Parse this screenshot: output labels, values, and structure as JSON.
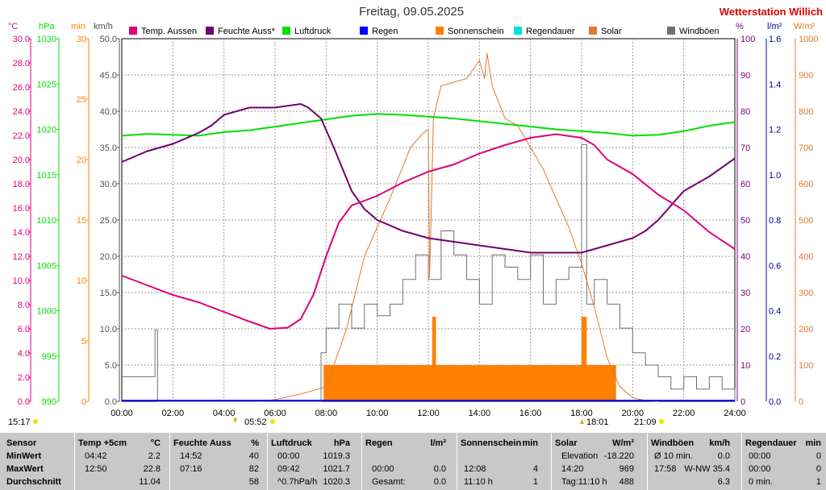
{
  "title": "Freitag, 09.05.2025",
  "station": "Wetterstation Willich",
  "colors": {
    "temp": "#e0007a",
    "humidity": "#700070",
    "pressure": "#00e000",
    "rain": "#0000ff",
    "sunshine": "#ff8000",
    "rainduration": "#00e0e0",
    "solar": "#e07830",
    "gust": "#707070",
    "grid": "#999999"
  },
  "legend": [
    {
      "label": "Temp. Aussen",
      "color": "#e0007a"
    },
    {
      "label": "Feuchte Auss*",
      "color": "#700070"
    },
    {
      "label": "Luftdruck",
      "color": "#00e000"
    },
    {
      "label": "Regen",
      "color": "#0000ff"
    },
    {
      "label": "Sonnenschein",
      "color": "#ff8000"
    },
    {
      "label": "Regendauer",
      "color": "#00e0e0"
    },
    {
      "label": "Solar",
      "color": "#e07830"
    },
    {
      "label": "Windböen",
      "color": "#707070"
    }
  ],
  "axes": {
    "temp": {
      "unit": "°C",
      "min": 0,
      "max": 30,
      "ticks": [
        "30.0",
        "28.0",
        "26.0",
        "24.0",
        "22.0",
        "20.0",
        "18.0",
        "16.0",
        "14.0",
        "12.0",
        "10.0",
        "8.0",
        "6.0",
        "4.0",
        "2.0",
        "0.0"
      ]
    },
    "pressure": {
      "unit": "hPa",
      "min": 990,
      "max": 1030,
      "ticks": [
        "1030",
        "1025",
        "1020",
        "1015",
        "1010",
        "1005",
        "1000",
        "995",
        "990"
      ]
    },
    "minutes": {
      "unit": "min",
      "min": 0,
      "max": 30,
      "ticks": [
        "30",
        "25",
        "20",
        "15",
        "10",
        "5",
        "0"
      ]
    },
    "wind": {
      "unit": "km/h",
      "min": 0,
      "max": 50,
      "ticks": [
        "50.0",
        "45.0",
        "40.0",
        "35.0",
        "30.0",
        "25.0",
        "20.0",
        "15.0",
        "10.0",
        "5.0",
        "0.0"
      ]
    },
    "humidity": {
      "unit": "%",
      "min": 0,
      "max": 100,
      "ticks": [
        "100",
        "90",
        "80",
        "70",
        "60",
        "50",
        "40",
        "30",
        "20",
        "10",
        "0"
      ]
    },
    "rain": {
      "unit": "l/m²",
      "min": 0,
      "max": 1.6,
      "ticks": [
        "1.6",
        "1.4",
        "1.2",
        "1.0",
        "0.8",
        "0.6",
        "0.4",
        "0.2",
        "0.0"
      ]
    },
    "solar": {
      "unit": "W/m²",
      "min": 0,
      "max": 1000,
      "ticks": [
        "1000",
        "900",
        "800",
        "700",
        "600",
        "500",
        "400",
        "300",
        "200",
        "100",
        "0"
      ]
    },
    "x": {
      "ticks": [
        "00:00",
        "02:00",
        "04:00",
        "06:00",
        "08:00",
        "10:00",
        "12:00",
        "14:00",
        "16:00",
        "18:00",
        "20:00",
        "22:00",
        "24:00"
      ]
    }
  },
  "markers": {
    "moonrise": "15:17",
    "sunrise": "05:52",
    "sunset": "21:09",
    "solar_noon": "18:01"
  },
  "chart_data": {
    "type": "line",
    "x_unit": "hour",
    "series": [
      {
        "name": "Temp. Aussen",
        "axis": "temp",
        "points": [
          [
            0,
            10.4
          ],
          [
            1,
            9.6
          ],
          [
            2,
            8.8
          ],
          [
            3,
            8.2
          ],
          [
            4,
            7.4
          ],
          [
            5,
            6.6
          ],
          [
            5.8,
            6.0
          ],
          [
            6.5,
            6.1
          ],
          [
            7,
            6.8
          ],
          [
            7.5,
            8.8
          ],
          [
            8,
            12.0
          ],
          [
            8.5,
            14.8
          ],
          [
            9,
            16.2
          ],
          [
            9.5,
            16.6
          ],
          [
            10,
            17.0
          ],
          [
            11,
            18.1
          ],
          [
            12,
            19.0
          ],
          [
            13,
            19.6
          ],
          [
            14,
            20.5
          ],
          [
            15,
            21.2
          ],
          [
            16,
            21.8
          ],
          [
            17,
            22.1
          ],
          [
            18,
            21.8
          ],
          [
            18.5,
            21.2
          ],
          [
            19,
            20.0
          ],
          [
            20,
            18.8
          ],
          [
            21,
            17.1
          ],
          [
            22,
            15.8
          ],
          [
            23,
            14.0
          ],
          [
            24,
            12.6
          ]
        ]
      },
      {
        "name": "Feuchte Auss*",
        "axis": "humidity",
        "points": [
          [
            0,
            66
          ],
          [
            1,
            69
          ],
          [
            2,
            71
          ],
          [
            3,
            74
          ],
          [
            3.5,
            76
          ],
          [
            4,
            79
          ],
          [
            5,
            81
          ],
          [
            6,
            81
          ],
          [
            7,
            82
          ],
          [
            7.3,
            81
          ],
          [
            7.8,
            78
          ],
          [
            8.3,
            70
          ],
          [
            9,
            58
          ],
          [
            9.5,
            53
          ],
          [
            10,
            50
          ],
          [
            11,
            47
          ],
          [
            12,
            45
          ],
          [
            13,
            44
          ],
          [
            14,
            43
          ],
          [
            15,
            42
          ],
          [
            16,
            41
          ],
          [
            17,
            41
          ],
          [
            18,
            41
          ],
          [
            19,
            43
          ],
          [
            20,
            45
          ],
          [
            20.5,
            47
          ],
          [
            21,
            50
          ],
          [
            22,
            58
          ],
          [
            23,
            62
          ],
          [
            24,
            67
          ]
        ]
      },
      {
        "name": "Luftdruck",
        "axis": "pressure",
        "points": [
          [
            0,
            1019.3
          ],
          [
            1,
            1019.5
          ],
          [
            2,
            1019.4
          ],
          [
            3,
            1019.3
          ],
          [
            4,
            1019.7
          ],
          [
            5,
            1019.9
          ],
          [
            6,
            1020.3
          ],
          [
            7,
            1020.7
          ],
          [
            8,
            1021.1
          ],
          [
            9,
            1021.5
          ],
          [
            10,
            1021.7
          ],
          [
            11,
            1021.6
          ],
          [
            12,
            1021.4
          ],
          [
            13,
            1021.2
          ],
          [
            14,
            1020.9
          ],
          [
            15,
            1020.6
          ],
          [
            16,
            1020.3
          ],
          [
            17,
            1020.0
          ],
          [
            18,
            1019.8
          ],
          [
            19,
            1019.6
          ],
          [
            20,
            1019.3
          ],
          [
            21,
            1019.4
          ],
          [
            22,
            1019.8
          ],
          [
            23,
            1020.4
          ],
          [
            24,
            1020.8
          ]
        ]
      },
      {
        "name": "Solar",
        "axis": "solar",
        "points": [
          [
            5.5,
            0
          ],
          [
            6,
            5
          ],
          [
            7,
            20
          ],
          [
            8,
            40
          ],
          [
            8.8,
            200
          ],
          [
            9.5,
            400
          ],
          [
            10.5,
            560
          ],
          [
            11.3,
            700
          ],
          [
            11.8,
            740
          ],
          [
            12.0,
            750
          ],
          [
            12.05,
            340
          ],
          [
            12.2,
            780
          ],
          [
            12.5,
            870
          ],
          [
            13,
            880
          ],
          [
            13.5,
            890
          ],
          [
            13.8,
            920
          ],
          [
            14,
            940
          ],
          [
            14.2,
            890
          ],
          [
            14.3,
            960
          ],
          [
            14.5,
            870
          ],
          [
            15,
            780
          ],
          [
            15.5,
            760
          ],
          [
            16,
            700
          ],
          [
            16.5,
            640
          ],
          [
            17,
            560
          ],
          [
            17.5,
            480
          ],
          [
            18,
            380
          ],
          [
            18.5,
            260
          ],
          [
            19,
            120
          ],
          [
            19.5,
            40
          ],
          [
            20,
            10
          ],
          [
            20.5,
            2
          ],
          [
            21,
            0
          ]
        ]
      },
      {
        "name": "Windböen",
        "axis": "wind",
        "points": [
          [
            0,
            3.4
          ],
          [
            1,
            3.4
          ],
          [
            1.3,
            9.8
          ],
          [
            1.4,
            0
          ],
          [
            2,
            0
          ],
          [
            3,
            0
          ],
          [
            4,
            0
          ],
          [
            5,
            0
          ],
          [
            6,
            0
          ],
          [
            7,
            0
          ],
          [
            7.5,
            0
          ],
          [
            7.8,
            6.7
          ],
          [
            8,
            10.1
          ],
          [
            8.5,
            13.4
          ],
          [
            9,
            10.1
          ],
          [
            9.5,
            13.4
          ],
          [
            10,
            11.8
          ],
          [
            10.5,
            13.4
          ],
          [
            11,
            16.8
          ],
          [
            11.5,
            20.2
          ],
          [
            12,
            16.8
          ],
          [
            12.5,
            23.5
          ],
          [
            13,
            20.2
          ],
          [
            13.5,
            16.8
          ],
          [
            14,
            13.4
          ],
          [
            14.5,
            20.2
          ],
          [
            15,
            18.5
          ],
          [
            15.5,
            16.8
          ],
          [
            16,
            20.2
          ],
          [
            16.5,
            13.4
          ],
          [
            17,
            16.8
          ],
          [
            17.5,
            18.5
          ],
          [
            18,
            35.4
          ],
          [
            18.2,
            13.4
          ],
          [
            18.5,
            16.8
          ],
          [
            19,
            13.4
          ],
          [
            19.5,
            10.1
          ],
          [
            20,
            6.7
          ],
          [
            20.5,
            5.0
          ],
          [
            21,
            3.4
          ],
          [
            21.5,
            1.7
          ],
          [
            22,
            3.4
          ],
          [
            22.5,
            1.7
          ],
          [
            23,
            3.4
          ],
          [
            23.5,
            1.7
          ],
          [
            24,
            0
          ]
        ]
      }
    ],
    "sunshine_min": {
      "name": "Sonnenschein",
      "axis": "minutes",
      "points": [
        [
          7.9,
          3
        ],
        [
          12.1,
          3
        ],
        [
          12.15,
          7
        ],
        [
          12.3,
          3
        ],
        [
          17.9,
          3
        ],
        [
          18.0,
          7
        ],
        [
          18.2,
          3
        ],
        [
          19.35,
          3
        ]
      ]
    },
    "rain_mm": {
      "name": "Regen",
      "axis": "rain",
      "value": 0.0
    },
    "rain_duration": {
      "name": "Regendauer",
      "axis": "minutes",
      "value": 0
    }
  },
  "stats": {
    "sensor": {
      "header": "Sensor",
      "rows": [
        "MinWert",
        "MaxWert",
        "Durchschnitt"
      ]
    },
    "temp": {
      "header": "Temp +5cm",
      "unit": "°C",
      "rows": [
        [
          "04:42",
          "2.2"
        ],
        [
          "12:50",
          "22.8"
        ],
        [
          "",
          "11.04"
        ]
      ]
    },
    "hum": {
      "header": "Feuchte Auss",
      "unit": "%",
      "rows": [
        [
          "14:52",
          "40"
        ],
        [
          "07:16",
          "82"
        ],
        [
          "",
          "58"
        ]
      ]
    },
    "press": {
      "header": "Luftdruck",
      "unit": "hPa",
      "rows": [
        [
          "00:00",
          "1019.3"
        ],
        [
          "09:42",
          "1021.7"
        ],
        [
          "^0.7hPa/h",
          "1020.3"
        ]
      ]
    },
    "rain": {
      "header": "Regen",
      "unit": "l/m²",
      "rows": [
        [
          "",
          ""
        ],
        [
          "00:00",
          "0.0"
        ],
        [
          "Gesamt:",
          "0.0"
        ]
      ]
    },
    "sun": {
      "header": "Sonnenschein",
      "unit": "min",
      "rows": [
        [
          "",
          ""
        ],
        [
          "12:08",
          "4"
        ],
        [
          "11:10 h",
          "1"
        ]
      ]
    },
    "solar": {
      "header": "Solar",
      "unit": "W/m²",
      "rows": [
        [
          "Elevation",
          "-18.220"
        ],
        [
          "14:20",
          "969"
        ],
        [
          "Tag:11:10 h",
          "488"
        ]
      ]
    },
    "wind": {
      "header": "Windböen",
      "unit": "km/h",
      "rows": [
        [
          "Ø 10 min.",
          "0.0"
        ],
        [
          "17:58",
          "W-NW 35.4"
        ],
        [
          "",
          "6.3"
        ]
      ]
    },
    "rainduration": {
      "header": "Regendauer",
      "unit": "min",
      "rows": [
        [
          "00:00",
          "0"
        ],
        [
          "00:00",
          "0"
        ],
        [
          "0 min.",
          "1"
        ]
      ]
    }
  }
}
